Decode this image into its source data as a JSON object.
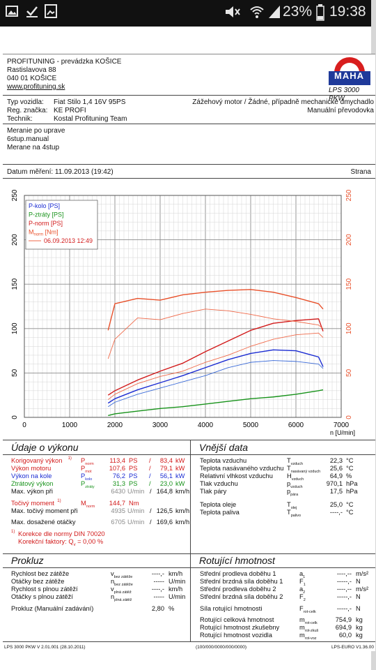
{
  "statusbar": {
    "battery": "23%",
    "time": "19:38",
    "icons": [
      "image-icon",
      "check-icon",
      "gallery-icon",
      "mute-icon",
      "wifi-icon",
      "signal-icon",
      "battery-icon"
    ]
  },
  "header": {
    "company": "PROFITUNING - prevádzka KOŠICE",
    "street": "Rastislavova 88",
    "city": "040 01 KOŠICE",
    "web": "www.profituning.sk",
    "model": "LPS 3000 PKW",
    "logo_text": "MAHA",
    "logo_ring": "Maschinenbau Haldenwang"
  },
  "vehicle": {
    "typ_label": "Typ vozidla:",
    "typ": "Fiat Stilo 1,4 16V 95PS",
    "reg_label": "Reg. značka:",
    "reg": "KE PROFI",
    "tech_label": "Technik:",
    "tech": "Kostal Profituning Team",
    "motor": "Zážehový motor / Žádné, případně mechanické dmychadlo",
    "gearbox": "Manuální převodovka"
  },
  "notes": [
    "Meranie po uprave",
    "6stup.manual",
    "Merane na 4stup"
  ],
  "measure": {
    "date_label": "Datum měření: 11.09.2013 (19:42)",
    "page_label": "Strana"
  },
  "chart_data": {
    "type": "line",
    "xlabel": "n [U/min]",
    "xlim": [
      0,
      7000
    ],
    "ylim": [
      0,
      250
    ],
    "x_ticks": [
      "0",
      "1000",
      "2000",
      "3000",
      "4000",
      "5000",
      "6000",
      "7000"
    ],
    "y_ticks": [
      "0",
      "50",
      "100",
      "150",
      "200",
      "250"
    ],
    "legend": [
      "P-kolo [PS]",
      "P-ztráty [PS]",
      "P-norm [PS]",
      "M",
      "norm",
      " [Nm]",
      "06.09.2013 12:49"
    ],
    "legend_position": "top-left",
    "grid": true,
    "x": [
      1850,
      2000,
      2500,
      3000,
      3500,
      4000,
      4500,
      5000,
      5500,
      6000,
      6500,
      6600
    ],
    "series": [
      {
        "name": "P-kolo [PS]",
        "color": "#1a2bd2",
        "values": [
          16,
          21,
          31,
          39,
          47,
          56,
          65,
          72,
          76,
          75,
          68,
          57
        ]
      },
      {
        "name": "P-ztráty [PS]",
        "color": "#17921a",
        "values": [
          2,
          4,
          7,
          10,
          12,
          15,
          18,
          21,
          23,
          26,
          30,
          31
        ]
      },
      {
        "name": "P-norm [PS]",
        "color": "#d21a1a",
        "values": [
          25,
          30,
          42,
          52,
          61,
          74,
          86,
          98,
          106,
          109,
          111,
          97
        ]
      },
      {
        "name": "M norm [Nm]",
        "color": "#e8502a",
        "values": [
          98,
          128,
          134,
          132,
          138,
          141,
          143,
          144,
          141,
          135,
          128,
          122
        ]
      },
      {
        "name": "06.09.2013 12:49",
        "color": "#f06a4a",
        "values": [
          66,
          88,
          112,
          110,
          117,
          122,
          120,
          116,
          111,
          108,
          104,
          100
        ]
      },
      {
        "name": "06.09.2013 12:49 (P-norm)",
        "color": "#f06a4a",
        "values": [
          20,
          26,
          38,
          46,
          52,
          62,
          70,
          80,
          88,
          93,
          95,
          90
        ]
      },
      {
        "name": "06.09.2013 12:49 (P-kolo)",
        "color": "#3a6ad8",
        "values": [
          12,
          17,
          26,
          33,
          40,
          47,
          56,
          62,
          64,
          63,
          60,
          55
        ]
      }
    ]
  },
  "vykon": {
    "title": "Údaje o výkonu",
    "rows": [
      {
        "label": "Korigovaný výkon",
        "sup": "1)",
        "sym": "P",
        "sub": "norm",
        "v1": "113,4",
        "u1": "PS",
        "sep": "/",
        "v2": "83,4",
        "u2": "kW",
        "cls": "red"
      },
      {
        "label": "Výkon motoru",
        "sup": "",
        "sym": "P",
        "sub": "mot",
        "v1": "107,6",
        "u1": "PS",
        "sep": "/",
        "v2": "79,1",
        "u2": "kW",
        "cls": "red"
      },
      {
        "label": "Výkon na kole",
        "sup": "",
        "sym": "P",
        "sub": "kolo",
        "v1": "76,2",
        "u1": "PS",
        "sep": "/",
        "v2": "56,1",
        "u2": "kW",
        "cls": "blue"
      },
      {
        "label": "Ztrátový výkon",
        "sup": "",
        "sym": "P",
        "sub": "ztráty",
        "v1": "31,3",
        "u1": "PS",
        "sep": "/",
        "v2": "23,0",
        "u2": "kW",
        "cls": "green"
      },
      {
        "label": "Max. výkon při",
        "sup": "",
        "sym": "",
        "sub": "",
        "v1": "6430",
        "u1": "U/min",
        "sep": "/",
        "v2": "164,8",
        "u2": "km/h",
        "cls": ""
      }
    ],
    "torque": [
      {
        "label": "Točivý moment",
        "sup": "1)",
        "sym": "M",
        "sub": "norm",
        "v1": "144,7",
        "u1": "Nm",
        "sep": "",
        "v2": "",
        "u2": "",
        "cls": "red"
      },
      {
        "label": "Max. točivý moment při",
        "sup": "",
        "sym": "",
        "sub": "",
        "v1": "4935",
        "u1": "U/min",
        "sep": "/",
        "v2": "126,5",
        "u2": "km/h",
        "cls": ""
      }
    ],
    "max_rpm": {
      "label": "Max. dosažené otáčky",
      "v1": "6705",
      "u1": "U/min",
      "sep": "/",
      "v2": "169,6",
      "u2": "km/h"
    },
    "note1": "Korekce dle normy DIN 70020",
    "note1_sup": "1)",
    "note2": "Korekční faktory: Q",
    "note2_sub": "v",
    "note2_val": "=     0,00 %"
  },
  "vnejsi": {
    "title": "Vnější data",
    "rows": [
      {
        "label": "Teplota vzduchu",
        "sym": "T",
        "sub": "vzduch",
        "val": "22,3",
        "unit": "°C"
      },
      {
        "label": "Teplota nasávaného vzduchu",
        "sym": "T",
        "sub": "nasávaný vzduch",
        "val": "25,6",
        "unit": "°C"
      },
      {
        "label": "Relativní vlhkost vzduchu",
        "sym": "H",
        "sub": "vzduch",
        "val": "64,9",
        "unit": "%"
      },
      {
        "label": "Tlak vzduchu",
        "sym": "p",
        "sub": "vzduch",
        "val": "970,1",
        "unit": "hPa"
      },
      {
        "label": "Tlak páry",
        "sym": "p",
        "sub": "pára",
        "val": "17,5",
        "unit": "hPa"
      }
    ],
    "rows2": [
      {
        "label": "Teplota oleje",
        "sym": "T",
        "sub": "olej",
        "val": "25,0",
        "unit": "°C"
      },
      {
        "label": "Teplota paliva",
        "sym": "T",
        "sub": "palivo",
        "val": "----,-",
        "unit": "°C"
      }
    ]
  },
  "prokluz": {
    "title": "Prokluz",
    "rows": [
      {
        "label": "Rychlost bez zátěže",
        "sym": "v",
        "sub": "bez zátěže",
        "val": "----,-",
        "unit": "km/h"
      },
      {
        "label": "Otáčky bez zátěže",
        "sym": "n",
        "sub": "bez zátěže",
        "val": "-----",
        "unit": "U/min"
      },
      {
        "label": "Rychlost s plnou zátěží",
        "sym": "v",
        "sub": "plná zátěž",
        "val": "----,-",
        "unit": "km/h"
      },
      {
        "label": "Otáčky s plnou zátěží",
        "sym": "n",
        "sub": "plná zátěž",
        "val": "-----",
        "unit": "U/min"
      }
    ],
    "manual_label": "Prokluz (Manuální zadávání)",
    "manual_val": "2,80",
    "manual_unit": "%"
  },
  "hmotnost": {
    "title": "Rotující hmotnost",
    "rows": [
      {
        "label": "Střední prodleva doběhu 1",
        "sym": "a",
        "sub": "1",
        "val": "----,--",
        "unit": "m/s²"
      },
      {
        "label": "Střední brzdná síla doběhu 1",
        "sym": "F",
        "sub": "1",
        "val": "-----,-",
        "unit": "N"
      },
      {
        "label": "Střední prodleva doběhu 2",
        "sym": "a",
        "sub": "2",
        "val": "----,--",
        "unit": "m/s²"
      },
      {
        "label": "Střední brzdná síla doběhu 2",
        "sym": "F",
        "sub": "2",
        "val": "-----,-",
        "unit": "N"
      }
    ],
    "sila": {
      "label": "Síla rotující hmotnosti",
      "sym": "F",
      "sub": "rot-celk",
      "val": "-----,-",
      "unit": "N"
    },
    "rows2": [
      {
        "label": "Rotující celková hmotnost",
        "sym": "m",
        "sub": "rot-celk",
        "val": "754,9",
        "unit": "kg"
      },
      {
        "label": "Rotující hmotnost zkušebny",
        "sym": "m",
        "sub": "rot-zkuš",
        "val": "694,9",
        "unit": "kg"
      },
      {
        "label": "Rotující hmotnost vozidla",
        "sym": "m",
        "sub": "rot-voz",
        "val": "60,0",
        "unit": "kg"
      }
    ]
  },
  "footer": {
    "left": "LPS 3000 PKW V 2.01.001 (28.10.2011)",
    "mid": "(100/000/0000/000/0000)",
    "right": "LPS-EURO V1.36.00"
  }
}
